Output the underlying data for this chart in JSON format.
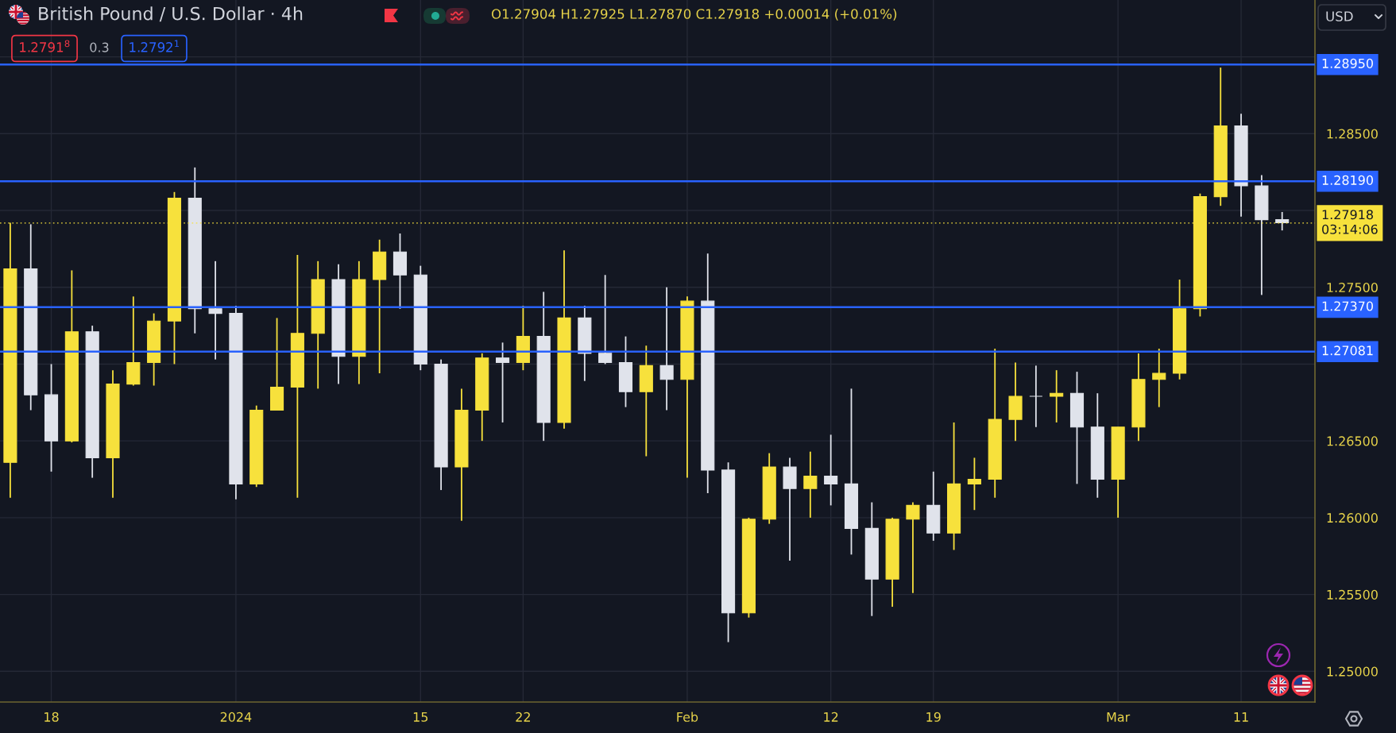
{
  "chart_data": {
    "type": "candlestick",
    "title": "British Pound / U.S. Dollar · 4h",
    "annotations": [
      "O1.27904 H1.27925 L1.27870 C1.27918 +0.00014 (+0.01%)",
      "1.2791$^{8}$",
      "0.3",
      "1.2792$^{1}$",
      "USD"
    ],
    "categories": [
      null,
      null,
      "18",
      null,
      null,
      null,
      null,
      null,
      null,
      null,
      null,
      "2024",
      null,
      null,
      null,
      null,
      null,
      null,
      null,
      null,
      "15",
      null,
      null,
      null,
      null,
      "22",
      null,
      null,
      null,
      null,
      null,
      null,
      null,
      "Feb",
      null,
      null,
      null,
      null,
      null,
      null,
      "12",
      null,
      null,
      null,
      null,
      "19",
      null,
      null,
      null,
      null,
      null,
      null,
      null,
      null,
      "Mar",
      null,
      null,
      null,
      null,
      null,
      "11",
      null,
      null
    ],
    "ohlc": [
      [
        1.2636,
        1.2792,
        1.2613,
        1.2762
      ],
      [
        1.2762,
        1.2791,
        1.267,
        1.268
      ],
      [
        1.268,
        1.27,
        1.263,
        1.265
      ],
      [
        1.265,
        1.2761,
        1.2649,
        1.2721
      ],
      [
        1.2721,
        1.2725,
        1.2626,
        1.2639
      ],
      [
        1.2639,
        1.2696,
        1.2613,
        1.2687
      ],
      [
        1.2687,
        1.2744,
        1.2686,
        1.2701
      ],
      [
        1.2701,
        1.2733,
        1.2686,
        1.2728
      ],
      [
        1.2728,
        1.2812,
        1.27,
        1.2808
      ],
      [
        1.2808,
        1.2828,
        1.272,
        1.2736
      ],
      [
        1.2736,
        1.2767,
        1.2703,
        1.2733
      ],
      [
        1.2733,
        1.2738,
        1.2612,
        1.2622
      ],
      [
        1.2622,
        1.2673,
        1.262,
        1.267
      ],
      [
        1.267,
        1.273,
        1.267,
        1.2685
      ],
      [
        1.2685,
        1.2771,
        1.2613,
        1.272
      ],
      [
        1.272,
        1.2767,
        1.2684,
        1.2755
      ],
      [
        1.2755,
        1.2765,
        1.2687,
        1.2705
      ],
      [
        1.2705,
        1.2767,
        1.2687,
        1.2755
      ],
      [
        1.2755,
        1.2781,
        1.2694,
        1.2773
      ],
      [
        1.2773,
        1.2785,
        1.2736,
        1.2758
      ],
      [
        1.2758,
        1.2764,
        1.2696,
        1.27
      ],
      [
        1.27,
        1.2703,
        1.2618,
        1.2633
      ],
      [
        1.2633,
        1.2684,
        1.2598,
        1.267
      ],
      [
        1.267,
        1.2707,
        1.265,
        1.2704
      ],
      [
        1.2704,
        1.2714,
        1.2662,
        1.2701
      ],
      [
        1.2701,
        1.2738,
        1.2696,
        1.2718
      ],
      [
        1.2718,
        1.2747,
        1.265,
        1.2662
      ],
      [
        1.2662,
        1.2774,
        1.2658,
        1.273
      ],
      [
        1.273,
        1.2738,
        1.2689,
        1.2707
      ],
      [
        1.2707,
        1.2758,
        1.27,
        1.2701
      ],
      [
        1.2701,
        1.2718,
        1.2672,
        1.2682
      ],
      [
        1.2682,
        1.2712,
        1.264,
        1.2699
      ],
      [
        1.2699,
        1.275,
        1.267,
        1.269
      ],
      [
        1.269,
        1.2744,
        1.2626,
        1.2741
      ],
      [
        1.2741,
        1.2772,
        1.2616,
        1.2631
      ],
      [
        1.2631,
        1.2636,
        1.2519,
        1.2538
      ],
      [
        1.2538,
        1.26,
        1.2535,
        1.2599
      ],
      [
        1.2599,
        1.2642,
        1.2596,
        1.2633
      ],
      [
        1.2633,
        1.2639,
        1.2572,
        1.2619
      ],
      [
        1.2619,
        1.2643,
        1.26,
        1.2627
      ],
      [
        1.2627,
        1.2654,
        1.2608,
        1.2622
      ],
      [
        1.2622,
        1.2684,
        1.2576,
        1.2593
      ],
      [
        1.2593,
        1.261,
        1.2536,
        1.256
      ],
      [
        1.256,
        1.26,
        1.2542,
        1.2599
      ],
      [
        1.2599,
        1.261,
        1.2551,
        1.2608
      ],
      [
        1.2608,
        1.263,
        1.2585,
        1.259
      ],
      [
        1.259,
        1.2662,
        1.2579,
        1.2622
      ],
      [
        1.2622,
        1.2639,
        1.2605,
        1.2625
      ],
      [
        1.2625,
        1.271,
        1.2613,
        1.2664
      ],
      [
        1.2664,
        1.2701,
        1.265,
        1.2679
      ],
      [
        1.2679,
        1.2699,
        1.2659,
        1.2679
      ],
      [
        1.2679,
        1.2696,
        1.2662,
        1.2681
      ],
      [
        1.2681,
        1.2695,
        1.2622,
        1.2659
      ],
      [
        1.2659,
        1.2681,
        1.2613,
        1.2625
      ],
      [
        1.2625,
        1.2659,
        1.26,
        1.2659
      ],
      [
        1.2659,
        1.2707,
        1.265,
        1.269
      ],
      [
        1.269,
        1.271,
        1.2672,
        1.2694
      ],
      [
        1.2694,
        1.2755,
        1.269,
        1.2736
      ],
      [
        1.2736,
        1.2811,
        1.2731,
        1.2809
      ],
      [
        1.2809,
        1.2893,
        1.2803,
        1.2855
      ],
      [
        1.2855,
        1.2863,
        1.2796,
        1.2816
      ],
      [
        1.2816,
        1.2823,
        1.2745,
        1.2794
      ],
      [
        1.2794,
        1.2799,
        1.2787,
        1.2792
      ]
    ],
    "colors": [
      "#f7e13c",
      "#e0e3eb",
      "#e0e3eb",
      "#f7e13c",
      "#e0e3eb",
      "#f7e13c",
      "#f7e13c",
      "#f7e13c",
      "#f7e13c",
      "#e0e3eb",
      "#e0e3eb",
      "#e0e3eb",
      "#f7e13c",
      "#f7e13c",
      "#f7e13c",
      "#f7e13c",
      "#e0e3eb",
      "#f7e13c",
      "#f7e13c",
      "#e0e3eb",
      "#e0e3eb",
      "#e0e3eb",
      "#f7e13c",
      "#f7e13c",
      "#e0e3eb",
      "#f7e13c",
      "#e0e3eb",
      "#f7e13c",
      "#e0e3eb",
      "#e0e3eb",
      "#e0e3eb",
      "#f7e13c",
      "#e0e3eb",
      "#f7e13c",
      "#e0e3eb",
      "#e0e3eb",
      "#f7e13c",
      "#f7e13c",
      "#e0e3eb",
      "#f7e13c",
      "#e0e3eb",
      "#e0e3eb",
      "#e0e3eb",
      "#f7e13c",
      "#f7e13c",
      "#e0e3eb",
      "#f7e13c",
      "#f7e13c",
      "#f7e13c",
      "#f7e13c",
      "#e0e3eb",
      "#f7e13c",
      "#e0e3eb",
      "#e0e3eb",
      "#f7e13c",
      "#f7e13c",
      "#f7e13c",
      "#f7e13c",
      "#f7e13c",
      "#f7e13c",
      "#e0e3eb",
      "#e0e3eb",
      "#e0e3eb"
    ],
    "ylim": [
      1.248,
      1.2937
    ],
    "yticks": [
      {
        "value": 1.25,
        "label": "1.25000"
      },
      {
        "value": 1.255,
        "label": "1.25500"
      },
      {
        "value": 1.26,
        "label": "1.26000"
      },
      {
        "value": 1.265,
        "label": "1.26500"
      },
      {
        "value": 1.27,
        "label": null
      },
      {
        "value": 1.275,
        "label": "1.27500"
      },
      {
        "value": 1.28,
        "label": null
      },
      {
        "value": 1.285,
        "label": "1.28500"
      },
      {
        "value": 1.29,
        "label": null
      }
    ],
    "grid": true,
    "ref_lines": [
      {
        "axis": "y",
        "value": 1.2895,
        "label": "1.28950",
        "color": "#2962ff",
        "line_style": "solid"
      },
      {
        "axis": "y",
        "value": 1.2819,
        "label": "1.28190",
        "color": "#2962ff",
        "line_style": "solid"
      },
      {
        "axis": "y",
        "value": 1.2737,
        "label": "1.27370",
        "color": "#2962ff",
        "line_style": "solid"
      },
      {
        "axis": "y",
        "value": 1.27081,
        "label": "1.27081",
        "color": "#2962ff",
        "line_style": "solid"
      },
      {
        "axis": "y",
        "value": 1.27918,
        "label": "1.27918\n03:14:06",
        "color": "#f7e13c",
        "line_style": "dotted"
      }
    ]
  }
}
